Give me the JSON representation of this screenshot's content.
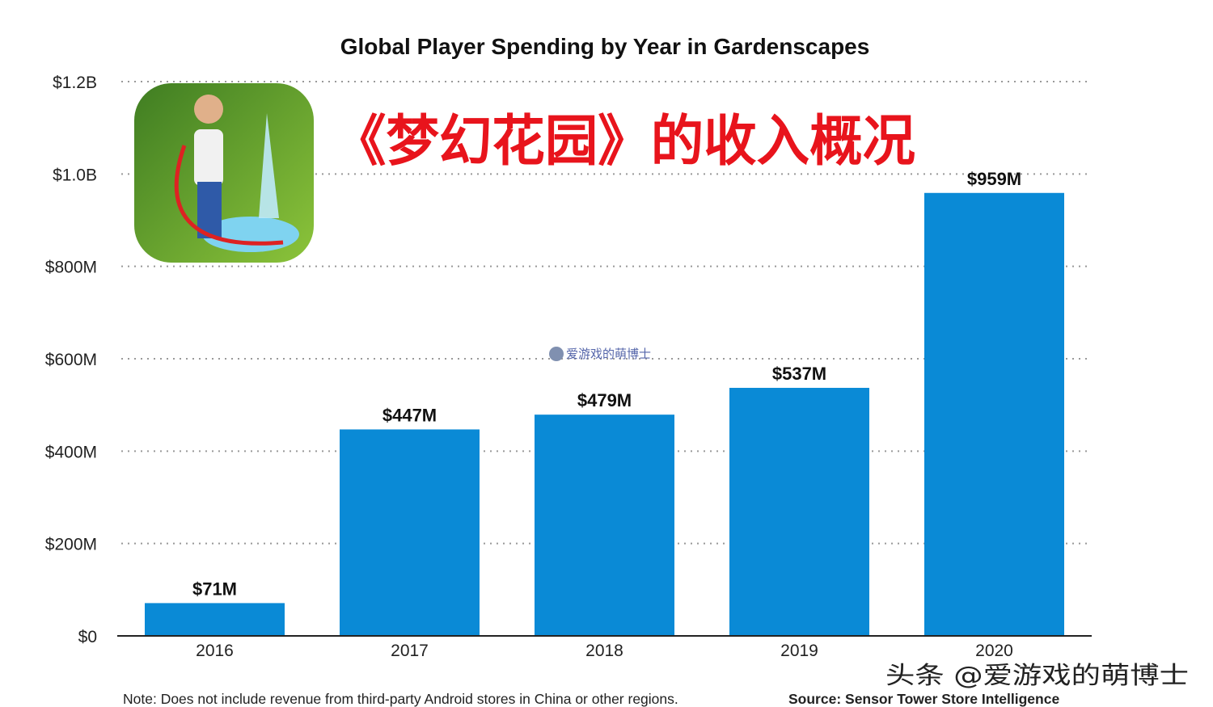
{
  "chart_data": {
    "type": "bar",
    "title": "Global Player Spending by Year in Gardenscapes",
    "categories": [
      "2016",
      "2017",
      "2018",
      "2019",
      "2020"
    ],
    "values": [
      71,
      447,
      479,
      537,
      959
    ],
    "value_unit": "million USD",
    "data_labels": [
      "$71M",
      "$447M",
      "$479M",
      "$537M",
      "$959M"
    ],
    "ylim": [
      0,
      1200
    ],
    "yticks": [
      0,
      200,
      400,
      600,
      800,
      1000,
      1200
    ],
    "ytick_labels": [
      "$0",
      "$200M",
      "$400M",
      "$600M",
      "$800M",
      "$1.0B",
      "$1.2B"
    ],
    "grid": true,
    "bar_color": "#0a8ad6",
    "xlabel": "",
    "ylabel": ""
  },
  "overlay_title": "《梦幻花园》的收入概况",
  "overlay_title_color": "#e8141c",
  "note": "Note: Does not include revenue from third-party Android stores in China or other regions.",
  "source": "Source: Sensor Tower Store Intelligence",
  "watermark": "头条 @爱游戏的萌博士",
  "center_watermark": "爱游戏的萌博士",
  "app_icon": "gardenscapes-app-icon"
}
